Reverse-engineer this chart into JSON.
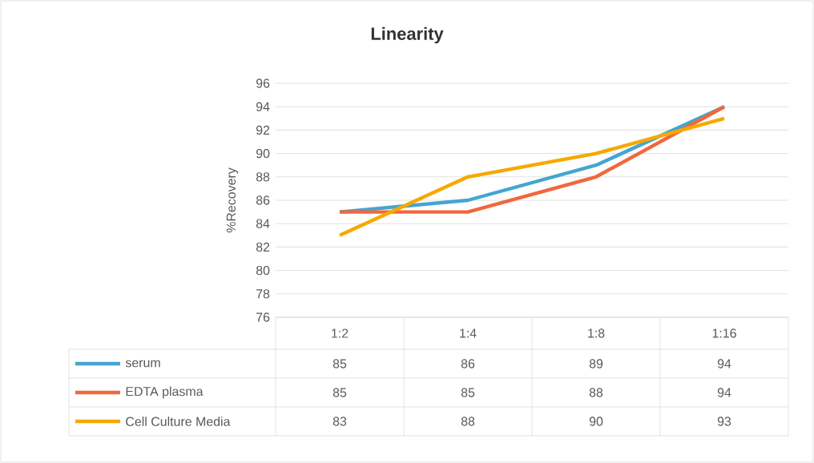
{
  "chart_data": {
    "type": "line",
    "title": "Linearity",
    "ylabel": "%Recovery",
    "categories": [
      "1:2",
      "1:4",
      "1:8",
      "1:16"
    ],
    "series": [
      {
        "name": "serum",
        "color": "#45a5cf",
        "values": [
          85,
          86,
          89,
          94
        ]
      },
      {
        "name": "EDTA plasma",
        "color": "#f0683c",
        "values": [
          85,
          85,
          88,
          94
        ]
      },
      {
        "name": "Cell Culture Media",
        "color": "#f7a800",
        "values": [
          83,
          88,
          90,
          93
        ]
      }
    ],
    "ylim": [
      76,
      96
    ],
    "yticks": [
      76,
      78,
      80,
      82,
      84,
      86,
      88,
      90,
      92,
      94,
      96
    ],
    "grid": "y",
    "legend": "bottom",
    "data_labels": true,
    "marker": "none",
    "line_style": "solid"
  }
}
